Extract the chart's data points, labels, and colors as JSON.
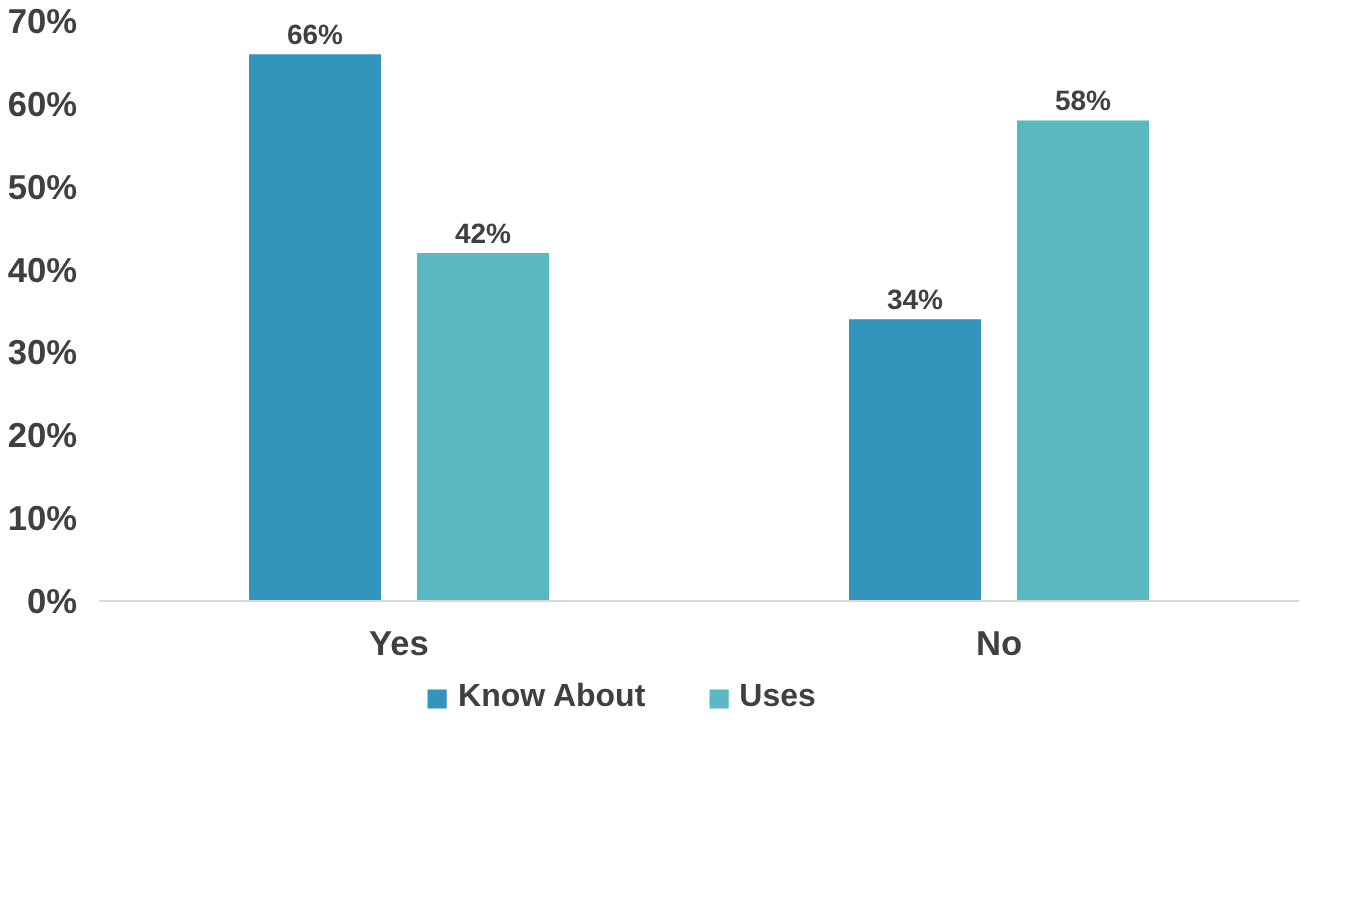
{
  "chart_data": {
    "type": "bar",
    "categories": [
      "Yes",
      "No"
    ],
    "series": [
      {
        "name": "Know About",
        "color": "#3394bc",
        "values": [
          66,
          34
        ],
        "value_labels": [
          "66%",
          "34%"
        ]
      },
      {
        "name": "Uses",
        "color": "#5ab8c0",
        "values": [
          42,
          58
        ],
        "value_labels": [
          "42%",
          "58%"
        ]
      }
    ],
    "ylim": [
      0,
      70
    ],
    "yticks": [
      {
        "value": 0,
        "label": "0%"
      },
      {
        "value": 10,
        "label": "10%"
      },
      {
        "value": 20,
        "label": "20%"
      },
      {
        "value": 30,
        "label": "30%"
      },
      {
        "value": 40,
        "label": "40%"
      },
      {
        "value": 50,
        "label": "50%"
      },
      {
        "value": 60,
        "label": "60%"
      },
      {
        "value": 70,
        "label": "70%"
      }
    ],
    "grid": false,
    "legend": "bottom"
  }
}
